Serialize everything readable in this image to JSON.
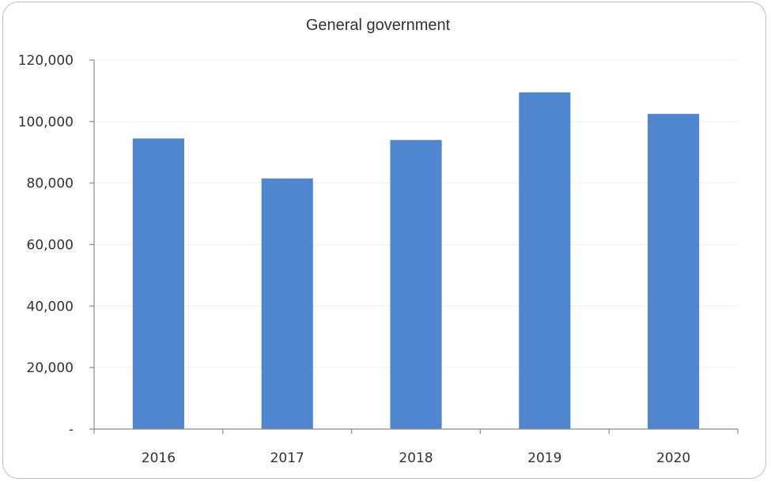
{
  "chart_data": {
    "type": "bar",
    "title": "General government",
    "categories": [
      "2016",
      "2017",
      "2018",
      "2019",
      "2020"
    ],
    "values": [
      94500,
      81500,
      94000,
      109500,
      102500
    ],
    "y_tick_labels": [
      "-",
      "20,000",
      "40,000",
      "60,000",
      "80,000",
      "100,000",
      "120,000"
    ],
    "ylim": [
      0,
      120000
    ],
    "grid": true,
    "legend": "none",
    "bar_color": "#4f86cf"
  }
}
